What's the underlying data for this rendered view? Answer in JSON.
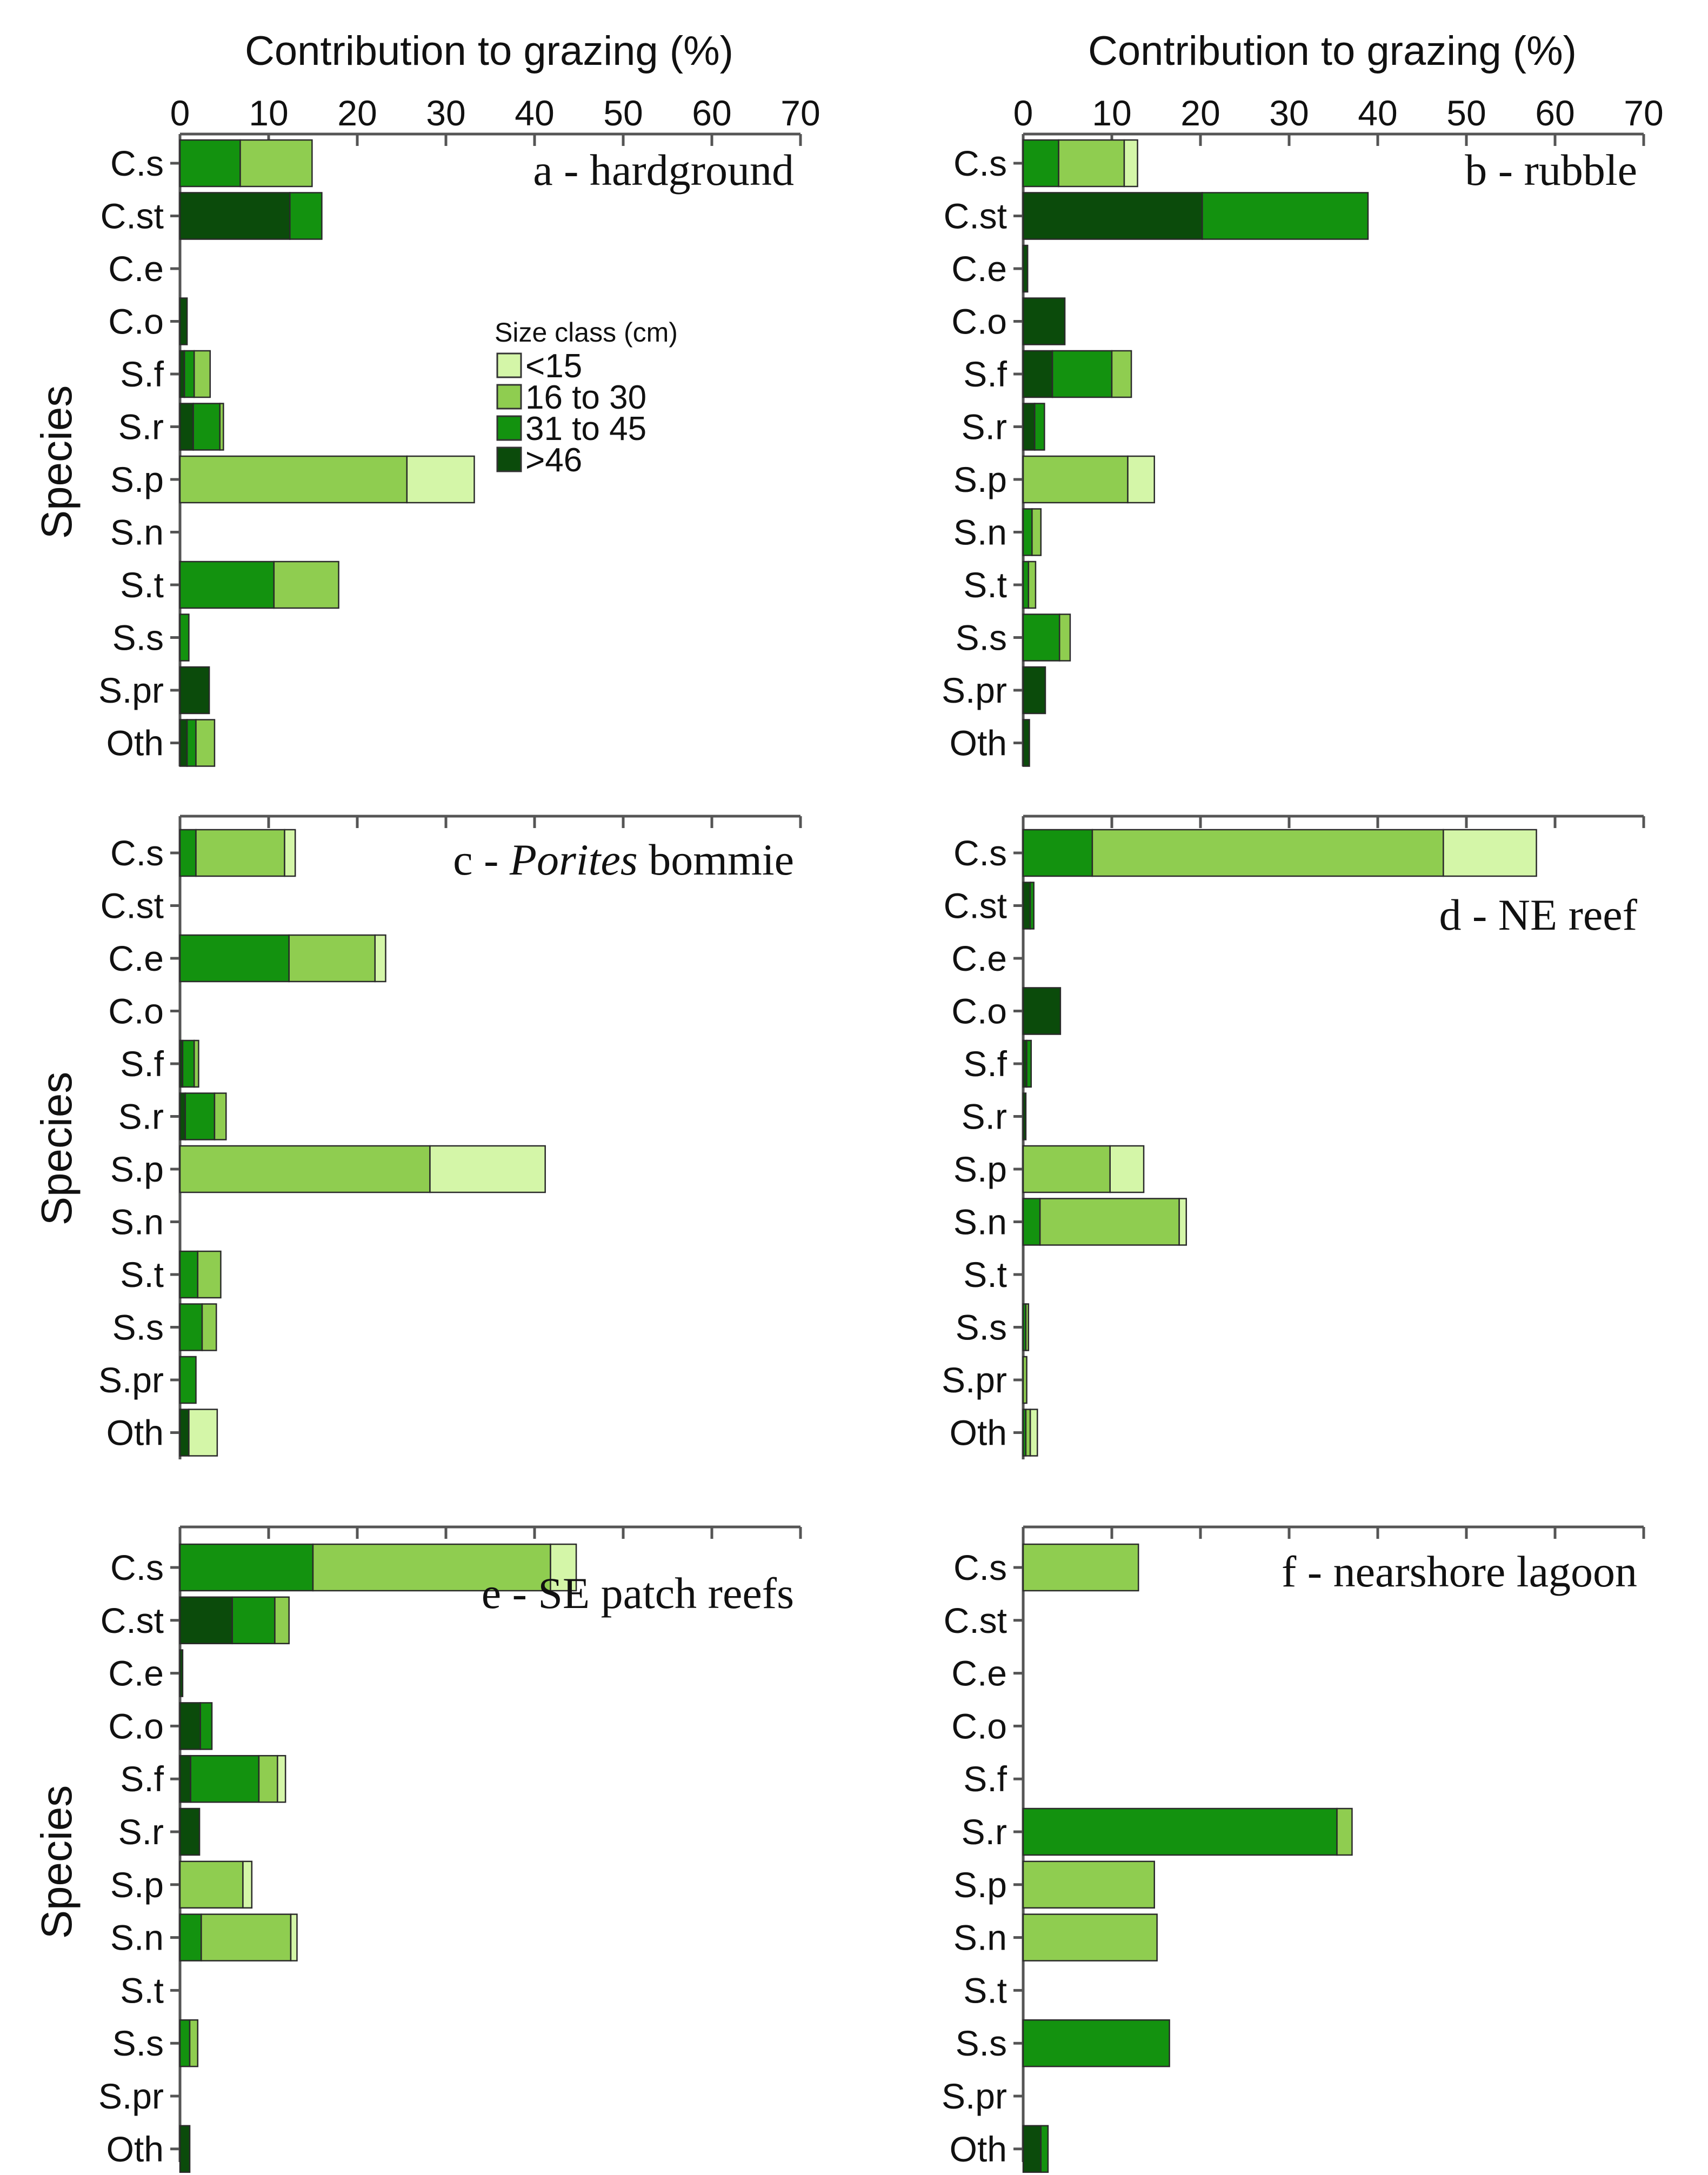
{
  "colors": {
    "<15": "#d4f6a8",
    "16 to 30": "#8fcd50",
    "31 to 45": "#13920f",
    ">46": "#0b4b0b"
  },
  "x_axis_title": "Contribution to grazing (%)",
  "y_axis_title": "Species",
  "legend": {
    "title": "Size class (cm)",
    "items": [
      "<15",
      "16 to 30",
      "31 to 45",
      ">46"
    ]
  },
  "chart_data": [
    {
      "type": "bar",
      "orientation": "horizontal",
      "stacked": true,
      "panel": "a",
      "title": "a - hardground",
      "xlabel": "Contribution to grazing (%)",
      "ylabel": "Species",
      "xlim": [
        0,
        70
      ],
      "xticks": [
        0,
        10,
        20,
        30,
        40,
        50,
        60,
        70
      ],
      "categories": [
        "C.s",
        "C.st",
        "C.e",
        "C.o",
        "S.f",
        "S.r",
        "S.p",
        "S.n",
        "S.t",
        "S.s",
        "S.pr",
        "Oth"
      ],
      "series": [
        {
          "name": ">46",
          "values": [
            0,
            12.4,
            0,
            0.8,
            0.5,
            1.5,
            0,
            0,
            0,
            0,
            3.3,
            0.8
          ]
        },
        {
          "name": "31 to 45",
          "values": [
            6.8,
            3.6,
            0,
            0,
            1.1,
            3.0,
            0,
            0,
            10.6,
            1.0,
            0,
            1.0
          ]
        },
        {
          "name": "16 to 30",
          "values": [
            8.1,
            0,
            0,
            0,
            1.8,
            0.4,
            25.6,
            0,
            7.3,
            0,
            0,
            2.1
          ]
        },
        {
          "name": "<15",
          "values": [
            0,
            0,
            0,
            0,
            0,
            0,
            7.6,
            0,
            0,
            0,
            0,
            0
          ]
        }
      ]
    },
    {
      "type": "bar",
      "orientation": "horizontal",
      "stacked": true,
      "panel": "b",
      "title": "b - rubble",
      "xlabel": "Contribution to grazing (%)",
      "ylabel": "",
      "xlim": [
        0,
        70
      ],
      "xticks": [
        0,
        10,
        20,
        30,
        40,
        50,
        60,
        70
      ],
      "categories": [
        "C.s",
        "C.st",
        "C.e",
        "C.o",
        "S.f",
        "S.r",
        "S.p",
        "S.n",
        "S.t",
        "S.s",
        "S.pr",
        "Oth"
      ],
      "series": [
        {
          "name": ">46",
          "values": [
            0,
            20.2,
            0.5,
            4.7,
            3.3,
            1.3,
            0,
            0,
            0,
            0,
            2.5,
            0.7
          ]
        },
        {
          "name": "31 to 45",
          "values": [
            4.0,
            18.7,
            0,
            0,
            6.7,
            1.1,
            0,
            1.0,
            0.6,
            4.1,
            0,
            0
          ]
        },
        {
          "name": "16 to 30",
          "values": [
            7.4,
            0,
            0,
            0,
            2.2,
            0,
            11.8,
            1.0,
            0.8,
            1.2,
            0,
            0
          ]
        },
        {
          "name": "<15",
          "values": [
            1.5,
            0,
            0,
            0,
            0,
            0,
            3.0,
            0,
            0,
            0,
            0,
            0
          ]
        }
      ]
    },
    {
      "type": "bar",
      "orientation": "horizontal",
      "stacked": true,
      "panel": "c",
      "title_parts": [
        "c - ",
        "Porites",
        " bommie"
      ],
      "xlabel": "",
      "ylabel": "Species",
      "xlim": [
        0,
        70
      ],
      "categories": [
        "C.s",
        "C.st",
        "C.e",
        "C.o",
        "S.f",
        "S.r",
        "S.p",
        "S.n",
        "S.t",
        "S.s",
        "S.pr",
        "Oth"
      ],
      "series": [
        {
          "name": ">46",
          "values": [
            0,
            0,
            0,
            0,
            0.3,
            0.6,
            0,
            0,
            0,
            0,
            0,
            1.0
          ]
        },
        {
          "name": "31 to 45",
          "values": [
            1.8,
            0,
            12.3,
            0,
            1.3,
            3.3,
            0,
            0,
            2.0,
            2.5,
            1.8,
            0
          ]
        },
        {
          "name": "16 to 30",
          "values": [
            10.0,
            0,
            9.7,
            0,
            0.5,
            1.3,
            28.2,
            0,
            2.6,
            1.6,
            0,
            0
          ]
        },
        {
          "name": "<15",
          "values": [
            1.2,
            0,
            1.2,
            0,
            0,
            0,
            13.0,
            0,
            0,
            0,
            0,
            3.2
          ]
        }
      ]
    },
    {
      "type": "bar",
      "orientation": "horizontal",
      "stacked": true,
      "panel": "d",
      "title": "d - NE reef",
      "xlabel": "",
      "ylabel": "",
      "xlim": [
        0,
        70
      ],
      "categories": [
        "C.s",
        "C.st",
        "C.e",
        "C.o",
        "S.f",
        "S.r",
        "S.p",
        "S.n",
        "S.t",
        "S.s",
        "S.pr",
        "Oth"
      ],
      "series": [
        {
          "name": ">46",
          "values": [
            0,
            0.8,
            0,
            4.2,
            0.4,
            0.3,
            0,
            0,
            0,
            0,
            0,
            0
          ]
        },
        {
          "name": "31 to 45",
          "values": [
            7.8,
            0.4,
            0,
            0,
            0.5,
            0,
            0,
            1.9,
            0,
            0.3,
            0,
            0.3
          ]
        },
        {
          "name": "16 to 30",
          "values": [
            39.6,
            0,
            0,
            0,
            0,
            0,
            9.8,
            15.7,
            0,
            0.3,
            0.4,
            0.5
          ]
        },
        {
          "name": "<15",
          "values": [
            10.5,
            0,
            0,
            0,
            0,
            0,
            3.8,
            0.8,
            0,
            0,
            0,
            0.8
          ]
        }
      ]
    },
    {
      "type": "bar",
      "orientation": "horizontal",
      "stacked": true,
      "panel": "e",
      "title": "e - SE patch reefs",
      "xlabel": "",
      "ylabel": "Species",
      "xlim": [
        0,
        70
      ],
      "categories": [
        "C.s",
        "C.st",
        "C.e",
        "C.o",
        "S.f",
        "S.r",
        "S.p",
        "S.n",
        "S.t",
        "S.s",
        "S.pr",
        "Oth"
      ],
      "series": [
        {
          "name": ">46",
          "values": [
            0,
            5.9,
            0.3,
            2.3,
            1.2,
            2.2,
            0,
            0,
            0,
            0,
            0,
            1.1
          ]
        },
        {
          "name": "31 to 45",
          "values": [
            15.0,
            4.8,
            0,
            1.3,
            7.7,
            0,
            0,
            2.4,
            0,
            1.1,
            0,
            0
          ]
        },
        {
          "name": "16 to 30",
          "values": [
            26.8,
            1.6,
            0,
            0,
            2.1,
            0,
            7.1,
            10.1,
            0,
            0.9,
            0,
            0
          ]
        },
        {
          "name": "<15",
          "values": [
            2.9,
            0,
            0,
            0,
            0.9,
            0,
            1.0,
            0.7,
            0,
            0,
            0,
            0
          ]
        }
      ]
    },
    {
      "type": "bar",
      "orientation": "horizontal",
      "stacked": true,
      "panel": "f",
      "title": "f - nearshore lagoon",
      "xlabel": "",
      "ylabel": "",
      "xlim": [
        0,
        70
      ],
      "categories": [
        "C.s",
        "C.st",
        "C.e",
        "C.o",
        "S.f",
        "S.r",
        "S.p",
        "S.n",
        "S.t",
        "S.s",
        "S.pr",
        "Oth"
      ],
      "series": [
        {
          "name": ">46",
          "values": [
            0,
            0,
            0,
            0,
            0,
            0,
            0,
            0,
            0,
            0,
            0,
            2.0
          ]
        },
        {
          "name": "31 to 45",
          "values": [
            0,
            0,
            0,
            0,
            0,
            35.4,
            0,
            0,
            0,
            16.5,
            0,
            0.8
          ]
        },
        {
          "name": "16 to 30",
          "values": [
            13.0,
            0,
            0,
            0,
            0,
            1.7,
            14.8,
            15.1,
            0,
            0,
            0,
            0
          ]
        },
        {
          "name": "<15",
          "values": [
            0,
            0,
            0,
            0,
            0,
            0,
            0,
            0,
            0,
            0,
            0,
            0
          ]
        }
      ]
    }
  ]
}
